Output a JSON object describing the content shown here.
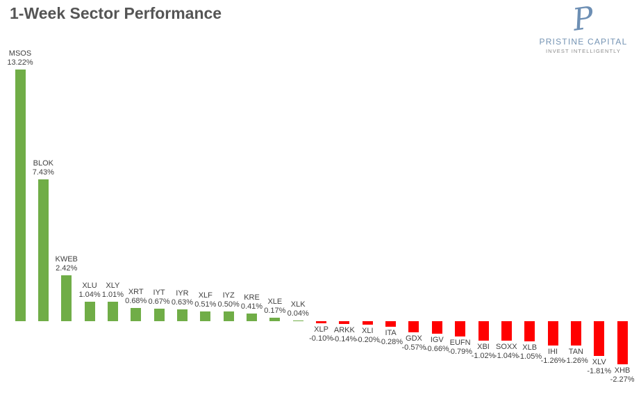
{
  "logo": {
    "monogram": "P",
    "name": "PRISTINE CAPITAL",
    "tagline": "INVEST INTELLIGENTLY"
  },
  "colors": {
    "positive_bar": "#70AD47",
    "negative_bar": "#FF0000",
    "title_text": "#555555",
    "label_text": "#404040",
    "logo_blue": "#7493b3",
    "logo_gray": "#8c8c8c"
  },
  "chart_data": {
    "type": "bar",
    "title": "1-Week Sector Performance",
    "xlabel": "",
    "ylabel": "",
    "grid": false,
    "axes_visible": false,
    "legend": "none",
    "label_position": "outside-end",
    "ylim": [
      -2.27,
      13.22
    ],
    "categories": [
      "MSOS",
      "BLOK",
      "KWEB",
      "XLU",
      "XLY",
      "XRT",
      "IYT",
      "IYR",
      "XLF",
      "IYZ",
      "KRE",
      "XLE",
      "XLK",
      "XLP",
      "ARKK",
      "XLI",
      "ITA",
      "GDX",
      "IGV",
      "EUFN",
      "XBI",
      "SOXX",
      "XLB",
      "IHI",
      "TAN",
      "XLV",
      "XHB"
    ],
    "values": [
      13.22,
      7.43,
      2.42,
      1.04,
      1.01,
      0.68,
      0.67,
      0.63,
      0.51,
      0.5,
      0.41,
      0.17,
      0.04,
      -0.1,
      -0.14,
      -0.2,
      -0.28,
      -0.57,
      -0.66,
      -0.79,
      -1.02,
      -1.04,
      -1.05,
      -1.26,
      -1.26,
      -1.81,
      -2.27
    ],
    "value_labels": [
      "13.22%",
      "7.43%",
      "2.42%",
      "1.04%",
      "1.01%",
      "0.68%",
      "0.67%",
      "0.63%",
      "0.51%",
      "0.50%",
      "0.41%",
      "0.17%",
      "0.04%",
      "-0.10%",
      "-0.14%",
      "-0.20%",
      "-0.28%",
      "-0.57%",
      "-0.66%",
      "-0.79%",
      "-1.02%",
      "-1.04%",
      "-1.05%",
      "-1.26%",
      "-1.26%",
      "-1.81%",
      "-2.27%"
    ]
  }
}
